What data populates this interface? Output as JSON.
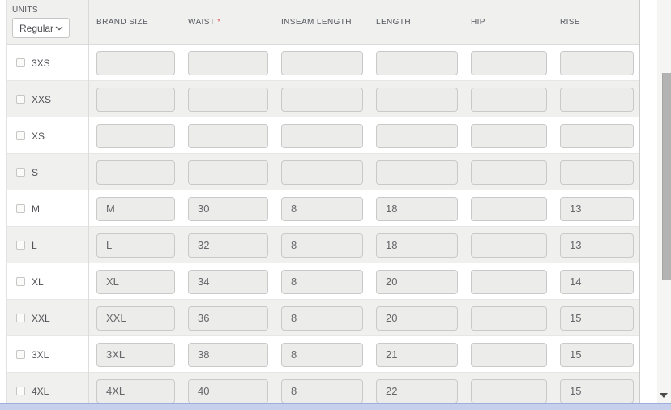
{
  "units": {
    "label": "UNITS",
    "value": "Regular"
  },
  "table": {
    "columns": [
      {
        "label": "BRAND SIZE"
      },
      {
        "label": "WAIST",
        "required_mark": "*"
      },
      {
        "label": "INSEAM LENGTH"
      },
      {
        "label": "LENGTH"
      },
      {
        "label": "HIP"
      },
      {
        "label": "RISE"
      }
    ],
    "rows": [
      {
        "size": "3XS",
        "checked": false,
        "values": [
          "",
          "",
          "",
          "",
          "",
          ""
        ]
      },
      {
        "size": "XXS",
        "checked": false,
        "values": [
          "",
          "",
          "",
          "",
          "",
          ""
        ]
      },
      {
        "size": "XS",
        "checked": false,
        "values": [
          "",
          "",
          "",
          "",
          "",
          ""
        ]
      },
      {
        "size": "S",
        "checked": false,
        "values": [
          "",
          "",
          "",
          "",
          "",
          ""
        ]
      },
      {
        "size": "M",
        "checked": false,
        "values": [
          "M",
          "30",
          "8",
          "18",
          "",
          "13"
        ]
      },
      {
        "size": "L",
        "checked": false,
        "values": [
          "L",
          "32",
          "8",
          "18",
          "",
          "13"
        ]
      },
      {
        "size": "XL",
        "checked": false,
        "values": [
          "XL",
          "34",
          "8",
          "20",
          "",
          "14"
        ]
      },
      {
        "size": "XXL",
        "checked": false,
        "values": [
          "XXL",
          "36",
          "8",
          "20",
          "",
          "15"
        ]
      },
      {
        "size": "3XL",
        "checked": false,
        "values": [
          "3XL",
          "38",
          "8",
          "21",
          "",
          "15"
        ]
      },
      {
        "size": "4XL",
        "checked": false,
        "values": [
          "4XL",
          "40",
          "8",
          "22",
          "",
          "15"
        ]
      }
    ]
  },
  "colors": {
    "header_background": "#f0f0ef",
    "stripe_background": "#f0f0ef",
    "required_asterisk": "#e05c5c",
    "horizontal_scrollbar": "#c6d0ed",
    "scrollbar_thumb": "#b3b3b3"
  }
}
